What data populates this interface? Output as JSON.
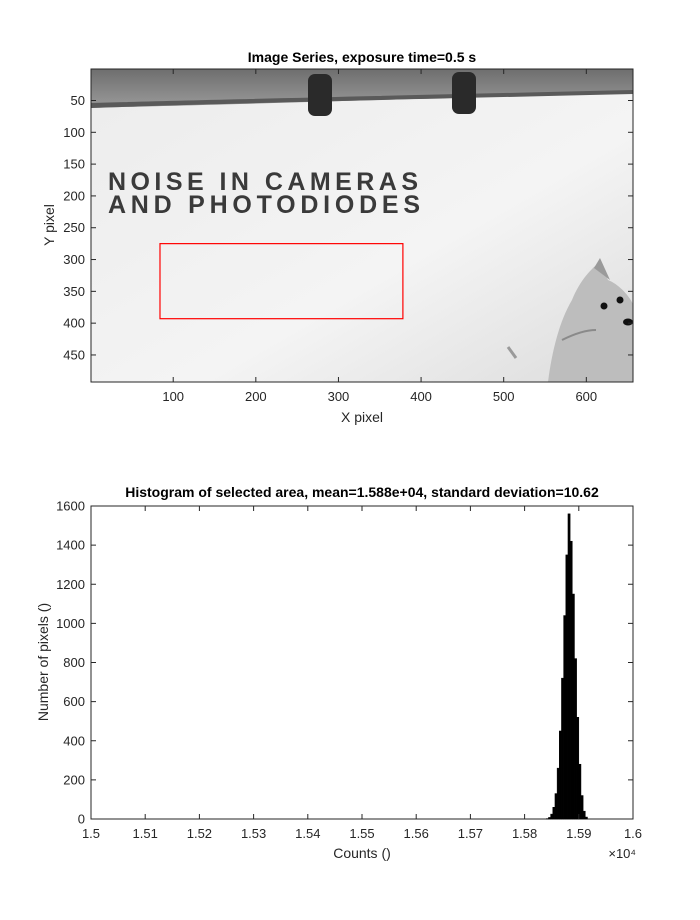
{
  "chart_data": [
    {
      "type": "image",
      "title": "Image Series, exposure time=0.5 s",
      "xlabel": "X pixel",
      "ylabel": "Y pixel",
      "xlim": [
        0.5,
        656.5
      ],
      "ylim": [
        0.5,
        492.5
      ],
      "y_direction": "reversed",
      "xticks": [
        100,
        200,
        300,
        400,
        500,
        600
      ],
      "yticks": [
        50,
        100,
        150,
        200,
        250,
        300,
        350,
        400,
        450
      ],
      "colormap": "gray",
      "image_text": [
        "NOISE IN CAMERAS",
        "AND PHOTODIODES"
      ],
      "selection_rect": {
        "x_range": [
          84,
          378
        ],
        "y_range": [
          275,
          393
        ],
        "color": "#ff0000"
      }
    },
    {
      "type": "histogram",
      "title": "Histogram of selected area, mean=1.588e+04, standard deviation=10.62",
      "xlabel": "Counts ()",
      "ylabel": "Number of pixels ()",
      "xlim": [
        15000,
        16000
      ],
      "ylim": [
        0,
        1600
      ],
      "xticks": [
        15000,
        15100,
        15200,
        15300,
        15400,
        15500,
        15600,
        15700,
        15800,
        15900,
        16000
      ],
      "xtick_labels": [
        "1.5",
        "1.51",
        "1.52",
        "1.53",
        "1.54",
        "1.55",
        "1.56",
        "1.57",
        "1.58",
        "1.59",
        "1.6"
      ],
      "x_exponent": "×10⁴",
      "yticks": [
        0,
        200,
        400,
        600,
        800,
        1000,
        1200,
        1400,
        1600
      ],
      "mean": 15880,
      "std": 10.62,
      "peak_count": 1560,
      "bar_color": "#000000",
      "bins_x": [
        15842,
        15846,
        15850,
        15854,
        15858,
        15862,
        15866,
        15870,
        15874,
        15878,
        15882,
        15886,
        15890,
        15894,
        15898,
        15902,
        15906,
        15910,
        15914
      ],
      "bins_y": [
        2,
        8,
        25,
        60,
        130,
        260,
        450,
        720,
        1040,
        1350,
        1560,
        1420,
        1150,
        820,
        520,
        280,
        120,
        40,
        10
      ]
    }
  ]
}
